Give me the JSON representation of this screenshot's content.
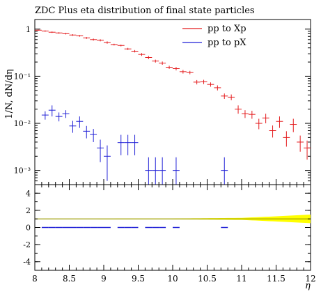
{
  "chart_data": {
    "type": "scatter",
    "title": "ZDC Plus eta distribution of final state particles",
    "xlabel": "η",
    "ylabel": "1/N, dN/dη",
    "xlim": [
      8,
      12
    ],
    "ylim": [
      0.0005,
      1.6
    ],
    "yscale": "log",
    "x_ticks": [
      "8",
      "8.5",
      "9",
      "9.5",
      "10",
      "10.5",
      "11",
      "11.5",
      "12"
    ],
    "y_ticks": [
      "1",
      "10⁻¹",
      "10⁻²",
      "10⁻³"
    ],
    "legend_position": "top-right",
    "series": [
      {
        "name": "pp to Xp",
        "color": "#e41a1c",
        "points": [
          {
            "x": 8.05,
            "y": 0.95,
            "err": 0.03
          },
          {
            "x": 8.15,
            "y": 0.91,
            "err": 0.03
          },
          {
            "x": 8.25,
            "y": 0.86,
            "err": 0.03
          },
          {
            "x": 8.35,
            "y": 0.83,
            "err": 0.03
          },
          {
            "x": 8.45,
            "y": 0.8,
            "err": 0.03
          },
          {
            "x": 8.55,
            "y": 0.75,
            "err": 0.03
          },
          {
            "x": 8.65,
            "y": 0.72,
            "err": 0.03
          },
          {
            "x": 8.75,
            "y": 0.65,
            "err": 0.03
          },
          {
            "x": 8.85,
            "y": 0.6,
            "err": 0.03
          },
          {
            "x": 8.95,
            "y": 0.58,
            "err": 0.03
          },
          {
            "x": 9.05,
            "y": 0.52,
            "err": 0.03
          },
          {
            "x": 9.15,
            "y": 0.47,
            "err": 0.02
          },
          {
            "x": 9.25,
            "y": 0.45,
            "err": 0.02
          },
          {
            "x": 9.35,
            "y": 0.38,
            "err": 0.02
          },
          {
            "x": 9.45,
            "y": 0.34,
            "err": 0.02
          },
          {
            "x": 9.55,
            "y": 0.29,
            "err": 0.02
          },
          {
            "x": 9.65,
            "y": 0.25,
            "err": 0.02
          },
          {
            "x": 9.75,
            "y": 0.21,
            "err": 0.015
          },
          {
            "x": 9.85,
            "y": 0.19,
            "err": 0.015
          },
          {
            "x": 9.95,
            "y": 0.155,
            "err": 0.012
          },
          {
            "x": 10.05,
            "y": 0.145,
            "err": 0.012
          },
          {
            "x": 10.15,
            "y": 0.125,
            "err": 0.011
          },
          {
            "x": 10.25,
            "y": 0.12,
            "err": 0.01
          },
          {
            "x": 10.35,
            "y": 0.075,
            "err": 0.008
          },
          {
            "x": 10.45,
            "y": 0.076,
            "err": 0.008
          },
          {
            "x": 10.55,
            "y": 0.067,
            "err": 0.007
          },
          {
            "x": 10.65,
            "y": 0.057,
            "err": 0.007
          },
          {
            "x": 10.75,
            "y": 0.038,
            "err": 0.005
          },
          {
            "x": 10.85,
            "y": 0.036,
            "err": 0.005
          },
          {
            "x": 10.95,
            "y": 0.02,
            "err": 0.004
          },
          {
            "x": 11.05,
            "y": 0.016,
            "err": 0.003
          },
          {
            "x": 11.15,
            "y": 0.0155,
            "err": 0.003
          },
          {
            "x": 11.25,
            "y": 0.01,
            "err": 0.0025
          },
          {
            "x": 11.35,
            "y": 0.013,
            "err": 0.003
          },
          {
            "x": 11.45,
            "y": 0.007,
            "err": 0.002
          },
          {
            "x": 11.55,
            "y": 0.011,
            "err": 0.003
          },
          {
            "x": 11.65,
            "y": 0.005,
            "err": 0.0018
          },
          {
            "x": 11.75,
            "y": 0.0095,
            "err": 0.003
          },
          {
            "x": 11.85,
            "y": 0.004,
            "err": 0.0015
          },
          {
            "x": 11.95,
            "y": 0.003,
            "err": 0.0013
          }
        ]
      },
      {
        "name": "pp to pX",
        "color": "#1f1fd6",
        "points": [
          {
            "x": 8.15,
            "y": 0.015,
            "err": 0.003
          },
          {
            "x": 8.25,
            "y": 0.019,
            "err": 0.005
          },
          {
            "x": 8.35,
            "y": 0.014,
            "err": 0.003
          },
          {
            "x": 8.45,
            "y": 0.016,
            "err": 0.003
          },
          {
            "x": 8.55,
            "y": 0.0088,
            "err": 0.0025
          },
          {
            "x": 8.65,
            "y": 0.011,
            "err": 0.003
          },
          {
            "x": 8.75,
            "y": 0.0068,
            "err": 0.002
          },
          {
            "x": 8.85,
            "y": 0.0058,
            "err": 0.0018
          },
          {
            "x": 8.95,
            "y": 0.003,
            "err": 0.0015
          },
          {
            "x": 9.05,
            "y": 0.002,
            "err": 0.0014
          },
          {
            "x": 9.25,
            "y": 0.0039,
            "err": 0.0018
          },
          {
            "x": 9.35,
            "y": 0.0039,
            "err": 0.0018
          },
          {
            "x": 9.45,
            "y": 0.0039,
            "err": 0.0018
          },
          {
            "x": 9.65,
            "y": 0.001,
            "err": 0.0009
          },
          {
            "x": 9.75,
            "y": 0.001,
            "err": 0.0009
          },
          {
            "x": 9.85,
            "y": 0.001,
            "err": 0.0009
          },
          {
            "x": 10.05,
            "y": 0.001,
            "err": 0.0009
          },
          {
            "x": 10.75,
            "y": 0.001,
            "err": 0.0009
          }
        ]
      }
    ],
    "ratio_panel": {
      "ylim": [
        -5,
        5
      ],
      "y_ticks": [
        "4",
        "2",
        "0",
        "-2",
        "-4"
      ],
      "reference": 1,
      "band_color": "#ffff00",
      "line_color": "#999900",
      "band_halfwidth": [
        {
          "x": 8.0,
          "w": 0.02
        },
        {
          "x": 10.0,
          "w": 0.04
        },
        {
          "x": 11.0,
          "w": 0.12
        },
        {
          "x": 11.5,
          "w": 0.3
        },
        {
          "x": 12.0,
          "w": 0.5
        }
      ],
      "blue_ratio_x": [
        8.15,
        8.25,
        8.35,
        8.45,
        8.55,
        8.65,
        8.75,
        8.85,
        8.95,
        9.05,
        9.25,
        9.35,
        9.45,
        9.65,
        9.75,
        9.85,
        10.05,
        10.75
      ],
      "blue_ratio_y": 0
    }
  }
}
